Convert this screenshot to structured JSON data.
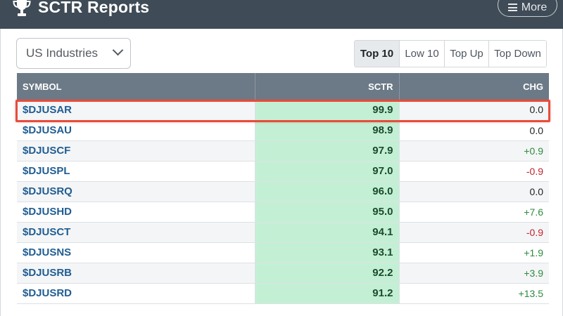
{
  "header": {
    "title": "SCTR Reports",
    "more_label": "More",
    "icons": {
      "logo": "trophy-icon",
      "menu": "hamburger-menu-icon"
    }
  },
  "controls": {
    "universe_select": "US Industries",
    "tabs": [
      {
        "label": "Top 10",
        "active": true
      },
      {
        "label": "Low 10",
        "active": false
      },
      {
        "label": "Top Up",
        "active": false
      },
      {
        "label": "Top Down",
        "active": false
      }
    ]
  },
  "table": {
    "headers": {
      "symbol": "SYMBOL",
      "sctr": "SCTR",
      "chg": "CHG"
    },
    "rows": [
      {
        "symbol": "$DJUSAR",
        "sctr": "99.9",
        "chg": "0.0",
        "dir": "flat",
        "highlighted": true
      },
      {
        "symbol": "$DJUSAU",
        "sctr": "98.9",
        "chg": "0.0",
        "dir": "flat"
      },
      {
        "symbol": "$DJUSCF",
        "sctr": "97.9",
        "chg": "+0.9",
        "dir": "up"
      },
      {
        "symbol": "$DJUSPL",
        "sctr": "97.0",
        "chg": "-0.9",
        "dir": "down"
      },
      {
        "symbol": "$DJUSRQ",
        "sctr": "96.0",
        "chg": "0.0",
        "dir": "flat"
      },
      {
        "symbol": "$DJUSHD",
        "sctr": "95.0",
        "chg": "+7.6",
        "dir": "up"
      },
      {
        "symbol": "$DJUSCT",
        "sctr": "94.1",
        "chg": "-0.9",
        "dir": "down"
      },
      {
        "symbol": "$DJUSNS",
        "sctr": "93.1",
        "chg": "+1.9",
        "dir": "up"
      },
      {
        "symbol": "$DJUSRB",
        "sctr": "92.2",
        "chg": "+3.9",
        "dir": "up"
      },
      {
        "symbol": "$DJUSRD",
        "sctr": "91.2",
        "chg": "+13.5",
        "dir": "up"
      }
    ]
  },
  "colors": {
    "header_bg": "#3f4b56",
    "table_header_bg": "#6c7a87",
    "sctr_cell_bg": "#c3f0d4",
    "symbol_link": "#1f5d92",
    "chg_up": "#2e8b3e",
    "chg_down": "#c0232c",
    "chg_flat": "#222222",
    "highlight_border": "#e74c3c"
  }
}
